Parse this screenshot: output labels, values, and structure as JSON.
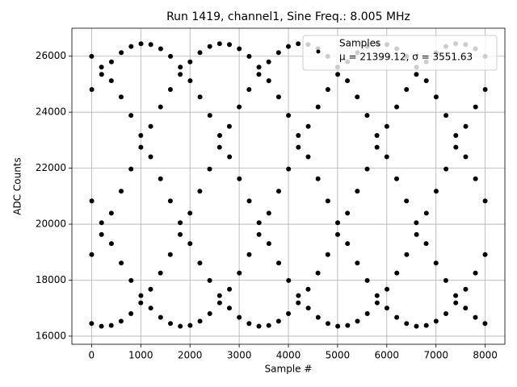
{
  "chart_data": {
    "type": "scatter",
    "title": "Run 1419, channel1, Sine Freq.: 8.005 MHz",
    "xlabel": "Sample #",
    "ylabel": "ADC Counts",
    "xlim": [
      -400,
      8400
    ],
    "ylim": [
      15710,
      27000
    ],
    "xticks": [
      0,
      1000,
      2000,
      3000,
      4000,
      5000,
      6000,
      7000,
      8000
    ],
    "yticks": [
      16000,
      18000,
      20000,
      22000,
      24000,
      26000
    ],
    "grid": true,
    "legend": "upper-right",
    "legend_annotation": "μ = 21399.12, σ = 3551.63",
    "x": [
      0,
      1,
      2,
      3,
      4,
      200,
      201,
      202,
      203,
      204,
      400,
      401,
      402,
      403,
      404,
      600,
      601,
      602,
      603,
      604,
      800,
      801,
      802,
      803,
      804,
      1000,
      1001,
      1002,
      1003,
      1004,
      1200,
      1201,
      1202,
      1203,
      1204,
      1400,
      1401,
      1402,
      1403,
      1404,
      1600,
      1601,
      1602,
      1603,
      1604,
      1800,
      1801,
      1802,
      1803,
      1804,
      2000,
      2001,
      2002,
      2003,
      2004,
      2200,
      2201,
      2202,
      2203,
      2204,
      2400,
      2401,
      2402,
      2403,
      2404,
      2600,
      2601,
      2602,
      2603,
      2604,
      2800,
      2801,
      2802,
      2803,
      2804,
      3000,
      3001,
      3002,
      3003,
      3004,
      3200,
      3201,
      3202,
      3203,
      3204,
      3400,
      3401,
      3402,
      3403,
      3404,
      3600,
      3601,
      3602,
      3603,
      3604,
      3800,
      3801,
      3802,
      3803,
      3804,
      4000,
      4001,
      4002,
      4003,
      4004,
      4200,
      4201,
      4202,
      4203,
      4204,
      4400,
      4401,
      4402,
      4403,
      4404,
      4600,
      4601,
      4602,
      4603,
      4604,
      4800,
      4801,
      4802,
      4803,
      4804,
      5000,
      5001,
      5002,
      5003,
      5004,
      5200,
      5201,
      5202,
      5203,
      5204,
      5400,
      5401,
      5402,
      5403,
      5404,
      5600,
      5601,
      5602,
      5603,
      5604,
      5800,
      5801,
      5802,
      5803,
      5804,
      6000,
      6001,
      6002,
      6003,
      6004,
      6200,
      6201,
      6202,
      6203,
      6204,
      6400,
      6401,
      6402,
      6403,
      6404,
      6600,
      6601,
      6602,
      6603,
      6604,
      6800,
      6801,
      6802,
      6803,
      6804,
      7000,
      7001,
      7002,
      7003,
      7004,
      7200,
      7201,
      7202,
      7203,
      7204,
      7400,
      7401,
      7402,
      7403,
      7404,
      7600,
      7601,
      7602,
      7603,
      7604,
      7800,
      7801,
      7802,
      7803,
      7804,
      7996,
      7997,
      7998,
      7999,
      8000
    ],
    "series": [
      {
        "name": "Samples",
        "color": "#000000",
        "values": [
          16452,
          25996,
          18913,
          20828,
          24812,
          16355,
          25611,
          19632,
          20051,
          25352,
          16382,
          25123,
          20393,
          19306,
          25796,
          16534,
          24544,
          21180,
          18613,
          26130,
          16804,
          23887,
          21972,
          17988,
          26348,
          17189,
          23168,
          22749,
          17448,
          26445,
          17677,
          22407,
          23494,
          17004,
          26418,
          18256,
          21620,
          24187,
          16670,
          26266,
          18913,
          20828,
          24812,
          16452,
          25996,
          19632,
          20051,
          25352,
          16355,
          25611,
          20393,
          19306,
          25796,
          16382,
          25123,
          21180,
          18613,
          26130,
          16534,
          24544,
          21972,
          17988,
          26348,
          16804,
          23887,
          22749,
          17448,
          26445,
          17189,
          23168,
          23494,
          17004,
          26418,
          17677,
          22407,
          24187,
          16670,
          26266,
          18256,
          21620,
          24812,
          16452,
          25996,
          18913,
          20828,
          25352,
          16355,
          25611,
          19632,
          20051,
          25796,
          16382,
          25123,
          20393,
          19306,
          26130,
          16534,
          24544,
          21180,
          18613,
          26348,
          16804,
          23887,
          21972,
          17988,
          26445,
          17189,
          23168,
          22749,
          17448,
          26418,
          17677,
          22407,
          23494,
          17004,
          26266,
          18256,
          21620,
          24187,
          16670,
          25996,
          18913,
          20828,
          24812,
          16452,
          25611,
          19632,
          20051,
          25352,
          16355,
          25123,
          20393,
          19306,
          25796,
          16382,
          24544,
          21180,
          18613,
          26130,
          16534,
          23887,
          21972,
          17988,
          26348,
          16804,
          23168,
          22749,
          17448,
          26445,
          17189,
          22407,
          23494,
          17004,
          26418,
          17677,
          21620,
          24187,
          16670,
          26266,
          18256,
          20828,
          24812,
          16452,
          25996,
          18913,
          20051,
          25352,
          16355,
          25611,
          19632,
          19306,
          25796,
          16382,
          25123,
          20393,
          18613,
          26130,
          16534,
          24544,
          21180,
          17988,
          26348,
          16804,
          23887,
          21972,
          17448,
          26445,
          17189,
          23168,
          22749,
          17004,
          26418,
          17677,
          22407,
          23494,
          16670,
          26266,
          18256,
          21620,
          24187,
          16452,
          25996,
          18913,
          20828,
          24812
        ]
      }
    ]
  }
}
